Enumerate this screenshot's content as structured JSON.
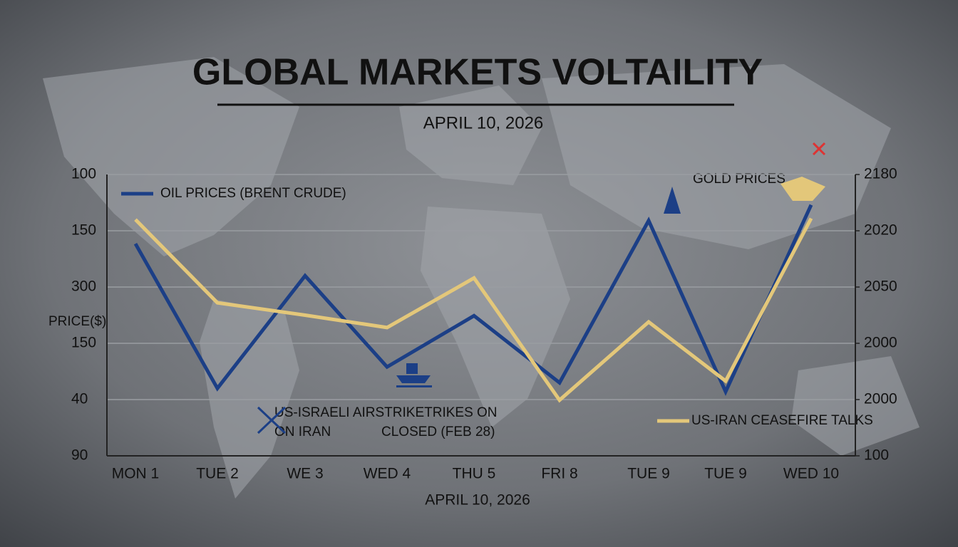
{
  "chart_data": {
    "type": "line",
    "title": "GLOBAL MARKETS VOLTAILITY",
    "subtitle": "APRIL 10, 2026",
    "x_label": "APRIL 10, 2026",
    "y_label": "PRICE($)",
    "y2_label": "GOLD PRICES",
    "annotations": [
      "US-ISRAELI AIRSTRIKETRIKES ON",
      "ON IRAN",
      "CLOSED (FEB 28)"
    ],
    "categories": [
      "MON 1",
      "TUE 2",
      "WE 3",
      "WED 4",
      "THU 5",
      "FRI 8",
      "TUE 9",
      "TUE 9",
      "WED 10"
    ],
    "series": [
      {
        "name": "OIL PRICES (BRENT CRUDE)",
        "color": "#1c3f86",
        "values": [
          3.77,
          1.2,
          3.2,
          1.58,
          2.49,
          1.3,
          4.18,
          1.14,
          4.46
        ]
      },
      {
        "name": "US-IRAN CEASEFIRE TALKS",
        "color": "#e3c77a",
        "axis": "y2",
        "values": [
          4.2,
          2.72,
          2.5,
          2.28,
          3.16,
          0.99,
          2.38,
          1.33,
          4.22
        ]
      }
    ],
    "ylim": [
      0,
      5
    ],
    "yticks": [
      {
        "value": 5,
        "label": "100"
      },
      {
        "value": 4,
        "label": "150"
      },
      {
        "value": 3,
        "label": "300"
      },
      {
        "value": 2,
        "label": "150"
      },
      {
        "value": 1,
        "label": "40"
      },
      {
        "value": 0,
        "label": "90"
      }
    ],
    "y2lim": [
      0,
      5
    ],
    "y2ticks": [
      {
        "value": 5,
        "label": "2180"
      },
      {
        "value": 4,
        "label": "2020"
      },
      {
        "value": 3,
        "label": "2050"
      },
      {
        "value": 2,
        "label": "2000"
      },
      {
        "value": 1,
        "label": "2000"
      },
      {
        "value": 0,
        "label": "100"
      }
    ],
    "grid": true
  }
}
